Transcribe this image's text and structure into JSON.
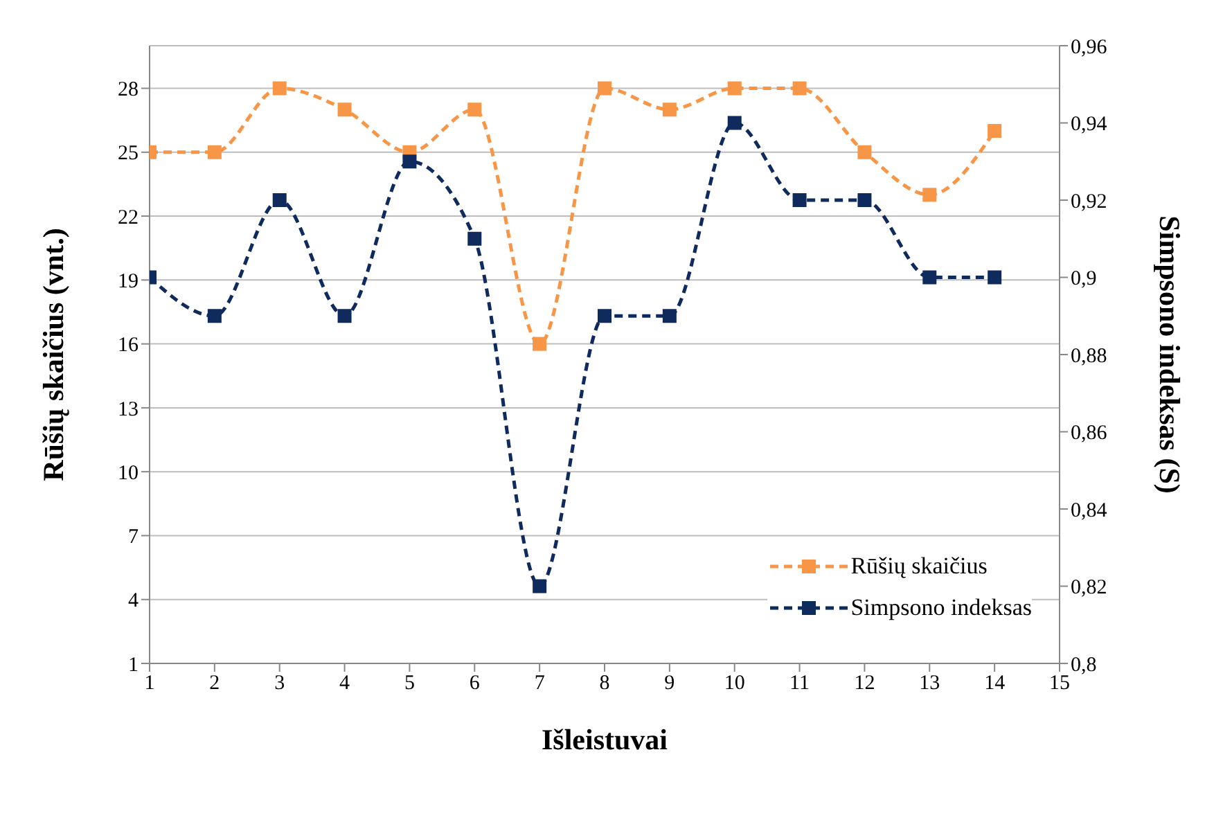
{
  "chart_data": {
    "type": "line",
    "xlabel": "Išleistuvai",
    "ylabel": "Rūšių skaičius (vnt.)",
    "y2label": "Simpsono indeksas (S)",
    "x": [
      1,
      2,
      3,
      4,
      5,
      6,
      7,
      8,
      9,
      10,
      11,
      12,
      13,
      14
    ],
    "xlim": [
      1,
      15
    ],
    "xticks": [
      1,
      2,
      3,
      4,
      5,
      6,
      7,
      8,
      9,
      10,
      11,
      12,
      13,
      14,
      15
    ],
    "ylim": [
      1,
      30
    ],
    "yticks": [
      1,
      4,
      7,
      10,
      13,
      16,
      19,
      22,
      25,
      28
    ],
    "y2lim": [
      0.8,
      0.96
    ],
    "y2ticks": [
      {
        "value": 0.8,
        "label": "0,8"
      },
      {
        "value": 0.82,
        "label": "0,82"
      },
      {
        "value": 0.84,
        "label": "0,84"
      },
      {
        "value": 0.86,
        "label": "0,86"
      },
      {
        "value": 0.88,
        "label": "0,88"
      },
      {
        "value": 0.9,
        "label": "0,9"
      },
      {
        "value": 0.92,
        "label": "0,92"
      },
      {
        "value": 0.94,
        "label": "0,94"
      },
      {
        "value": 0.96,
        "label": "0,96"
      }
    ],
    "series": [
      {
        "name": "Rūšių skaičius",
        "color": "#f79646",
        "values": [
          25,
          25,
          28,
          27,
          25,
          27,
          16,
          28,
          27,
          28,
          28,
          25,
          23,
          26
        ]
      },
      {
        "name": "Simpsono indeksas",
        "color": "#0f2a5c",
        "axis": "y2",
        "values": [
          0.9,
          0.89,
          0.92,
          0.89,
          0.93,
          0.91,
          0.82,
          0.89,
          0.89,
          0.94,
          0.92,
          0.92,
          0.9,
          0.9
        ]
      }
    ],
    "grid": "y",
    "legend": "bottom right",
    "marker": "square",
    "line_style": "dashed"
  }
}
